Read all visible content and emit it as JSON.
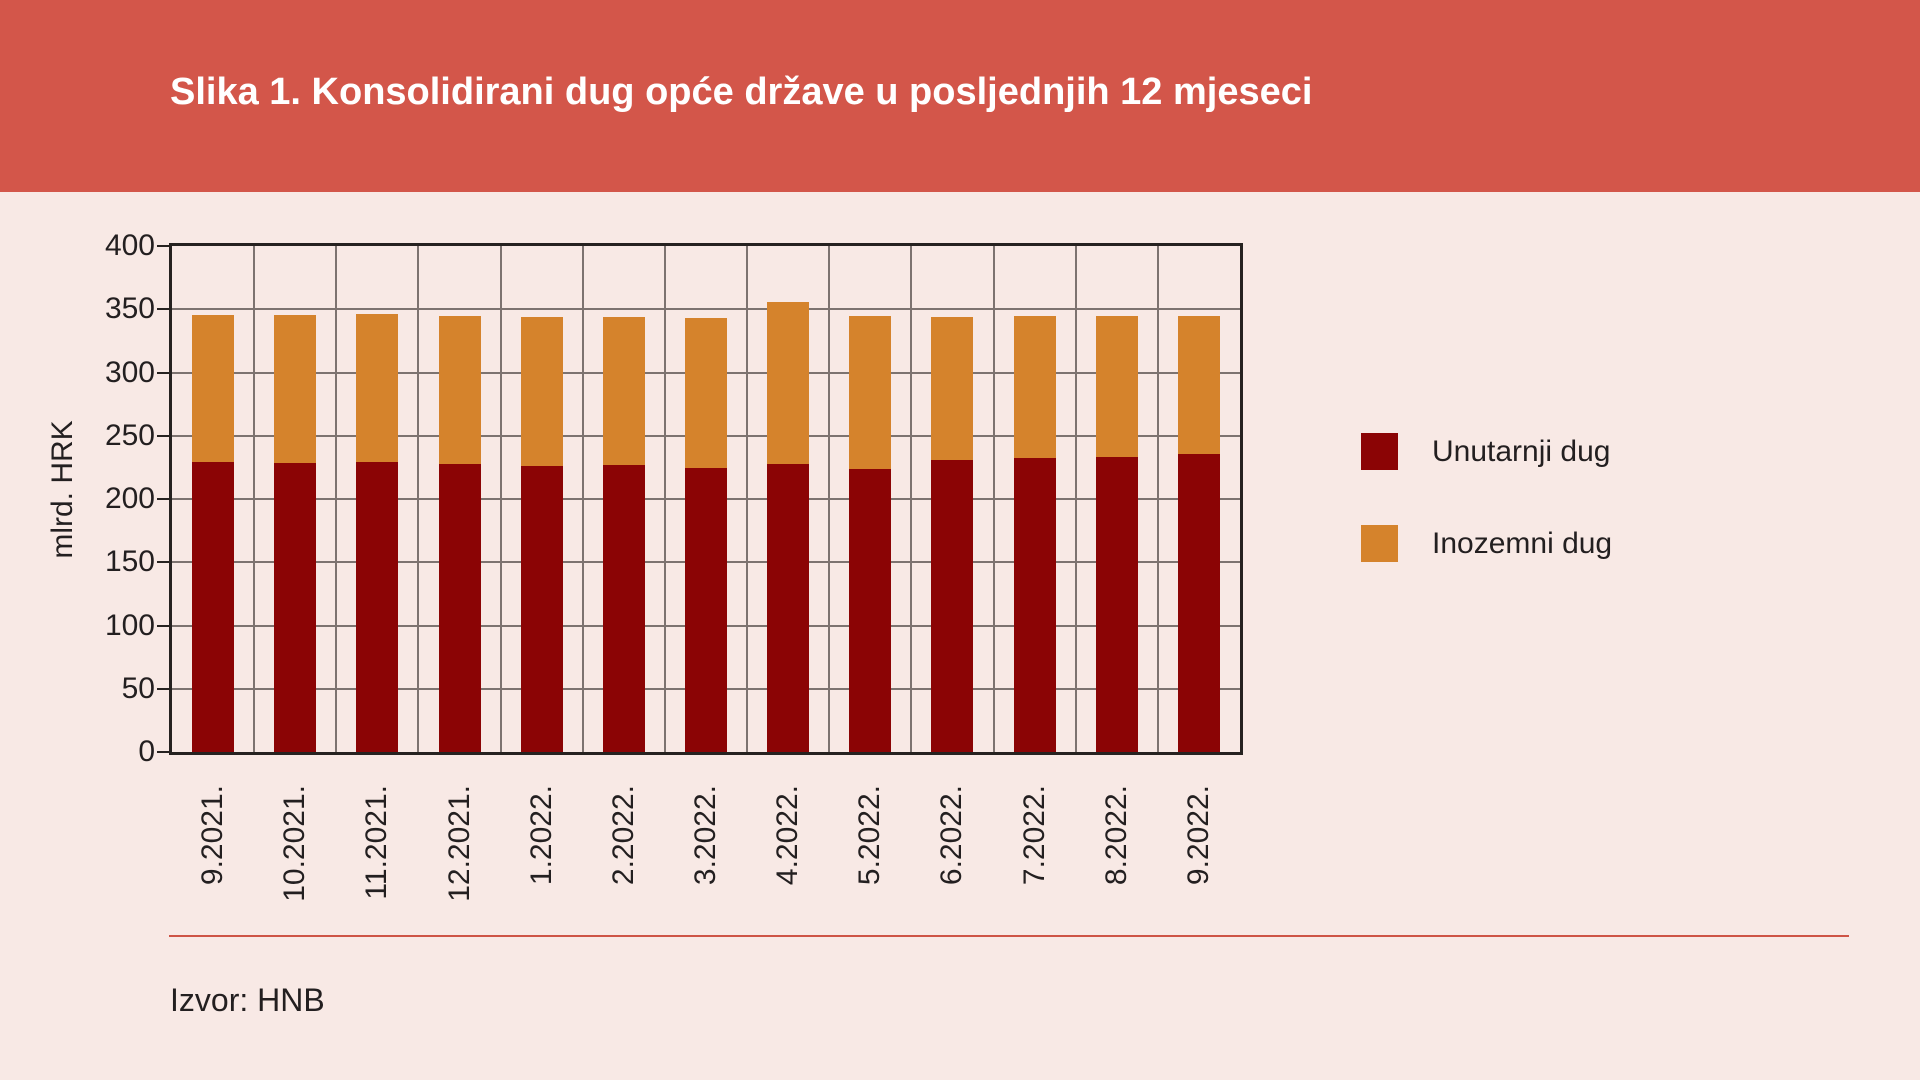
{
  "header": {
    "title": "Slika 1. Konsolidirani dug opće države u posljednjih 12 mjeseci"
  },
  "y_axis": {
    "label": "mlrd. HRK",
    "ticks": [
      "400",
      "350",
      "300",
      "250",
      "200",
      "150",
      "100",
      "50",
      "0"
    ]
  },
  "legend": [
    {
      "label": "Unutarnji dug",
      "color": "#8b0405"
    },
    {
      "label": "Inozemni dug",
      "color": "#d5832c"
    }
  ],
  "source": {
    "text": "Izvor: HNB"
  },
  "colors": {
    "band": "#d3564a",
    "title_text": "#ffffff",
    "page_background": "#f8e9e5",
    "internal_debt": "#8b0405",
    "external_debt": "#d5832c",
    "gridline": "#7d7370",
    "frame": "#262220",
    "divider": "#ce5446"
  },
  "chart_data": {
    "type": "bar",
    "stacked": true,
    "title": "Slika 1. Konsolidirani dug opće države u posljednjih 12 mjeseci",
    "xlabel": "",
    "ylabel": "mlrd. HRK",
    "ylim": [
      0,
      400
    ],
    "ytick_step": 50,
    "grid": true,
    "legend_position": "right",
    "categories": [
      "9.2021.",
      "10.2021.",
      "11.2021.",
      "12.2021.",
      "1.2022.",
      "2.2022.",
      "3.2022.",
      "4.2022.",
      "5.2022.",
      "6.2022.",
      "7.2022.",
      "8.2022.",
      "9.2022."
    ],
    "series": [
      {
        "name": "Unutarnji dug",
        "color": "#8b0405",
        "values": [
          228.9,
          228.8,
          229.3,
          227.6,
          226.1,
          226.5,
          224.9,
          227.7,
          223.9,
          230.7,
          232.5,
          233.4,
          235.4
        ]
      },
      {
        "name": "Inozemni dug",
        "color": "#d5832c",
        "values": [
          116.7,
          116.6,
          116.7,
          116.7,
          117.5,
          117.4,
          118.0,
          128.2,
          120.5,
          113.2,
          112.2,
          111.4,
          109.2
        ]
      }
    ],
    "totals": [
      345.6,
      345.4,
      346.0,
      344.3,
      343.6,
      343.9,
      342.9,
      355.9,
      344.4,
      343.9,
      344.7,
      344.8,
      344.6
    ]
  }
}
